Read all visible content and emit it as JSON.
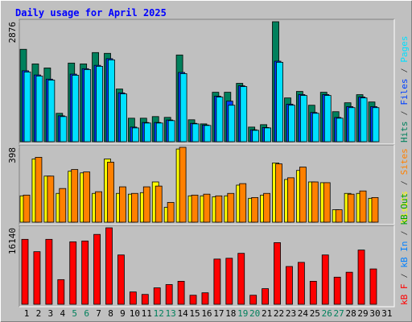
{
  "title": "Daily usage for April 2025",
  "chart_data": [
    {
      "type": "bar",
      "categories": [
        "1",
        "2",
        "3",
        "4",
        "5",
        "6",
        "7",
        "8",
        "9",
        "10",
        "11",
        "12",
        "13",
        "14",
        "15",
        "16",
        "17",
        "18",
        "19",
        "20",
        "21",
        "22",
        "23",
        "24",
        "25",
        "26",
        "27",
        "28",
        "29",
        "30",
        "31"
      ],
      "category_colors": [
        "#000000",
        "#000000",
        "#000000",
        "#000000",
        "#00805c",
        "#00805c",
        "#000000",
        "#000000",
        "#000000",
        "#000000",
        "#000000",
        "#00805c",
        "#00805c",
        "#000000",
        "#000000",
        "#000000",
        "#000000",
        "#000000",
        "#00805c",
        "#00805c",
        "#000000",
        "#000000",
        "#000000",
        "#000000",
        "#000000",
        "#00805c",
        "#00805c",
        "#000000",
        "#000000",
        "#000000",
        "#000000"
      ],
      "ylim": [
        0,
        2876
      ],
      "yticks": [
        2876
      ],
      "series": [
        {
          "name": "Hits",
          "color": "#00805c",
          "values": [
            2215,
            1865,
            1768,
            680,
            1885,
            1865,
            2137,
            2118,
            1263,
            563,
            563,
            602,
            583,
            2079,
            525,
            427,
            1185,
            1185,
            1399,
            350,
            408,
            2876,
            1049,
            1205,
            874,
            1185,
            719,
            933,
            1127,
            952,
            0
          ]
        },
        {
          "name": "Files",
          "color": "#0040ff",
          "values": [
            1700,
            1600,
            1500,
            620,
            1620,
            1750,
            1830,
            1990,
            1170,
            350,
            460,
            460,
            520,
            1660,
            440,
            400,
            1090,
            972,
            1340,
            285,
            340,
            1930,
            900,
            1130,
            700,
            1130,
            580,
            840,
            1070,
            840,
            0
          ]
        },
        {
          "name": "Pages",
          "color": "#00e0ff",
          "values": [
            1671,
            1574,
            1477,
            602,
            1593,
            1729,
            1807,
            1962,
            1146,
            330,
            447,
            447,
            505,
            1632,
            427,
            389,
            1069,
            874,
            1321,
            272,
            330,
            1904,
            874,
            1108,
            680,
            1108,
            563,
            816,
            1049,
            816,
            0
          ]
        }
      ]
    },
    {
      "type": "bar",
      "ylim": [
        0,
        398
      ],
      "yticks": [
        398
      ],
      "series": [
        {
          "name": "Visits",
          "color": "#ffff00",
          "values": [
            140,
            336,
            245,
            153,
            271,
            262,
            153,
            336,
            153,
            149,
            157,
            214,
            79,
            389,
            140,
            140,
            135,
            140,
            197,
            127,
            144,
            315,
            227,
            275,
            214,
            210,
            66,
            153,
            153,
            127,
            0
          ]
        },
        {
          "name": "Sites",
          "color": "#ff8000",
          "values": [
            144,
            345,
            245,
            179,
            280,
            267,
            162,
            319,
            188,
            153,
            188,
            192,
            105,
            398,
            144,
            149,
            140,
            153,
            205,
            131,
            153,
            310,
            236,
            293,
            214,
            210,
            66,
            149,
            166,
            131,
            0
          ]
        }
      ]
    },
    {
      "type": "bar",
      "ylim": [
        0,
        16140
      ],
      "yticks": [
        16140
      ],
      "series": [
        {
          "name": "kB F",
          "color": "#ff0000",
          "values": [
            13707,
            11104,
            13707,
            5205,
            13186,
            13360,
            14748,
            16140,
            10410,
            2603,
            2082,
            3470,
            4164,
            4858,
            1909,
            2429,
            9543,
            9716,
            10757,
            1909,
            3297,
            13013,
            7981,
            8849,
            4858,
            10410,
            5726,
            6767,
            11451,
            7461,
            0
          ]
        },
        {
          "name": "kB In",
          "color": "#0080ff"
        },
        {
          "name": "kB Out",
          "color": "#00a000"
        }
      ]
    }
  ]
}
